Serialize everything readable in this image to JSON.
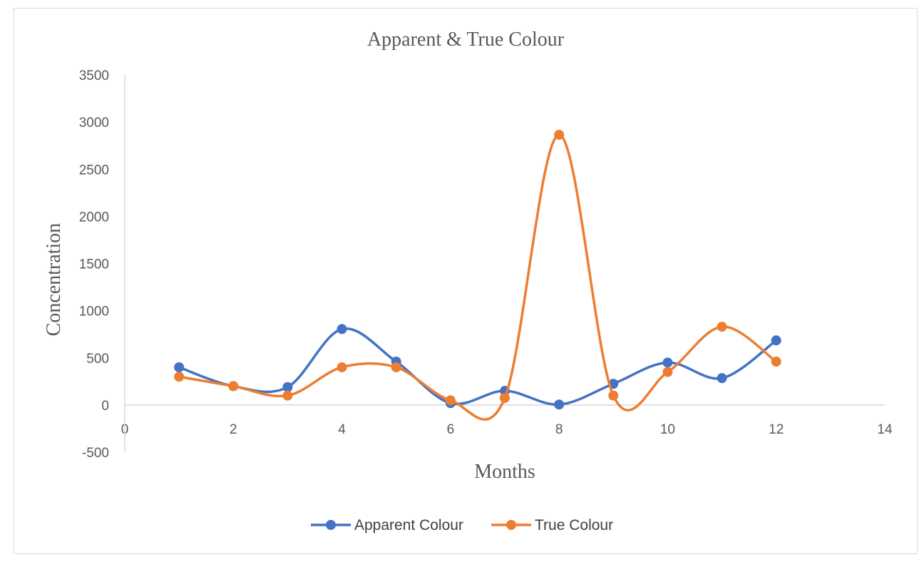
{
  "chart_data": {
    "type": "scatter",
    "title": "Apparent & True Colour",
    "xlabel": "Months",
    "ylabel": "Concentration",
    "xlim": [
      0,
      14
    ],
    "ylim": [
      -500,
      3500
    ],
    "xticks": [
      "0",
      "2",
      "4",
      "6",
      "8",
      "10",
      "12",
      "14"
    ],
    "yticks": [
      "3500",
      "3000",
      "2500",
      "2000",
      "1500",
      "1000",
      "500",
      "0",
      "-500"
    ],
    "grid": false,
    "smooth": true,
    "legend_position": "bottom",
    "series": [
      {
        "name": "Apparent Colour",
        "color": "#4472C4",
        "x": [
          1,
          2,
          3,
          4,
          5,
          6,
          7,
          8,
          9,
          10,
          11,
          12
        ],
        "y": [
          400,
          200,
          190,
          805,
          460,
          20,
          150,
          5,
          225,
          450,
          285,
          685
        ]
      },
      {
        "name": "True Colour",
        "color": "#ED7D31",
        "x": [
          1,
          2,
          3,
          4,
          5,
          6,
          7,
          8,
          9,
          10,
          11,
          12
        ],
        "y": [
          300,
          200,
          100,
          400,
          400,
          50,
          75,
          2865,
          100,
          350,
          830,
          460
        ]
      }
    ]
  }
}
